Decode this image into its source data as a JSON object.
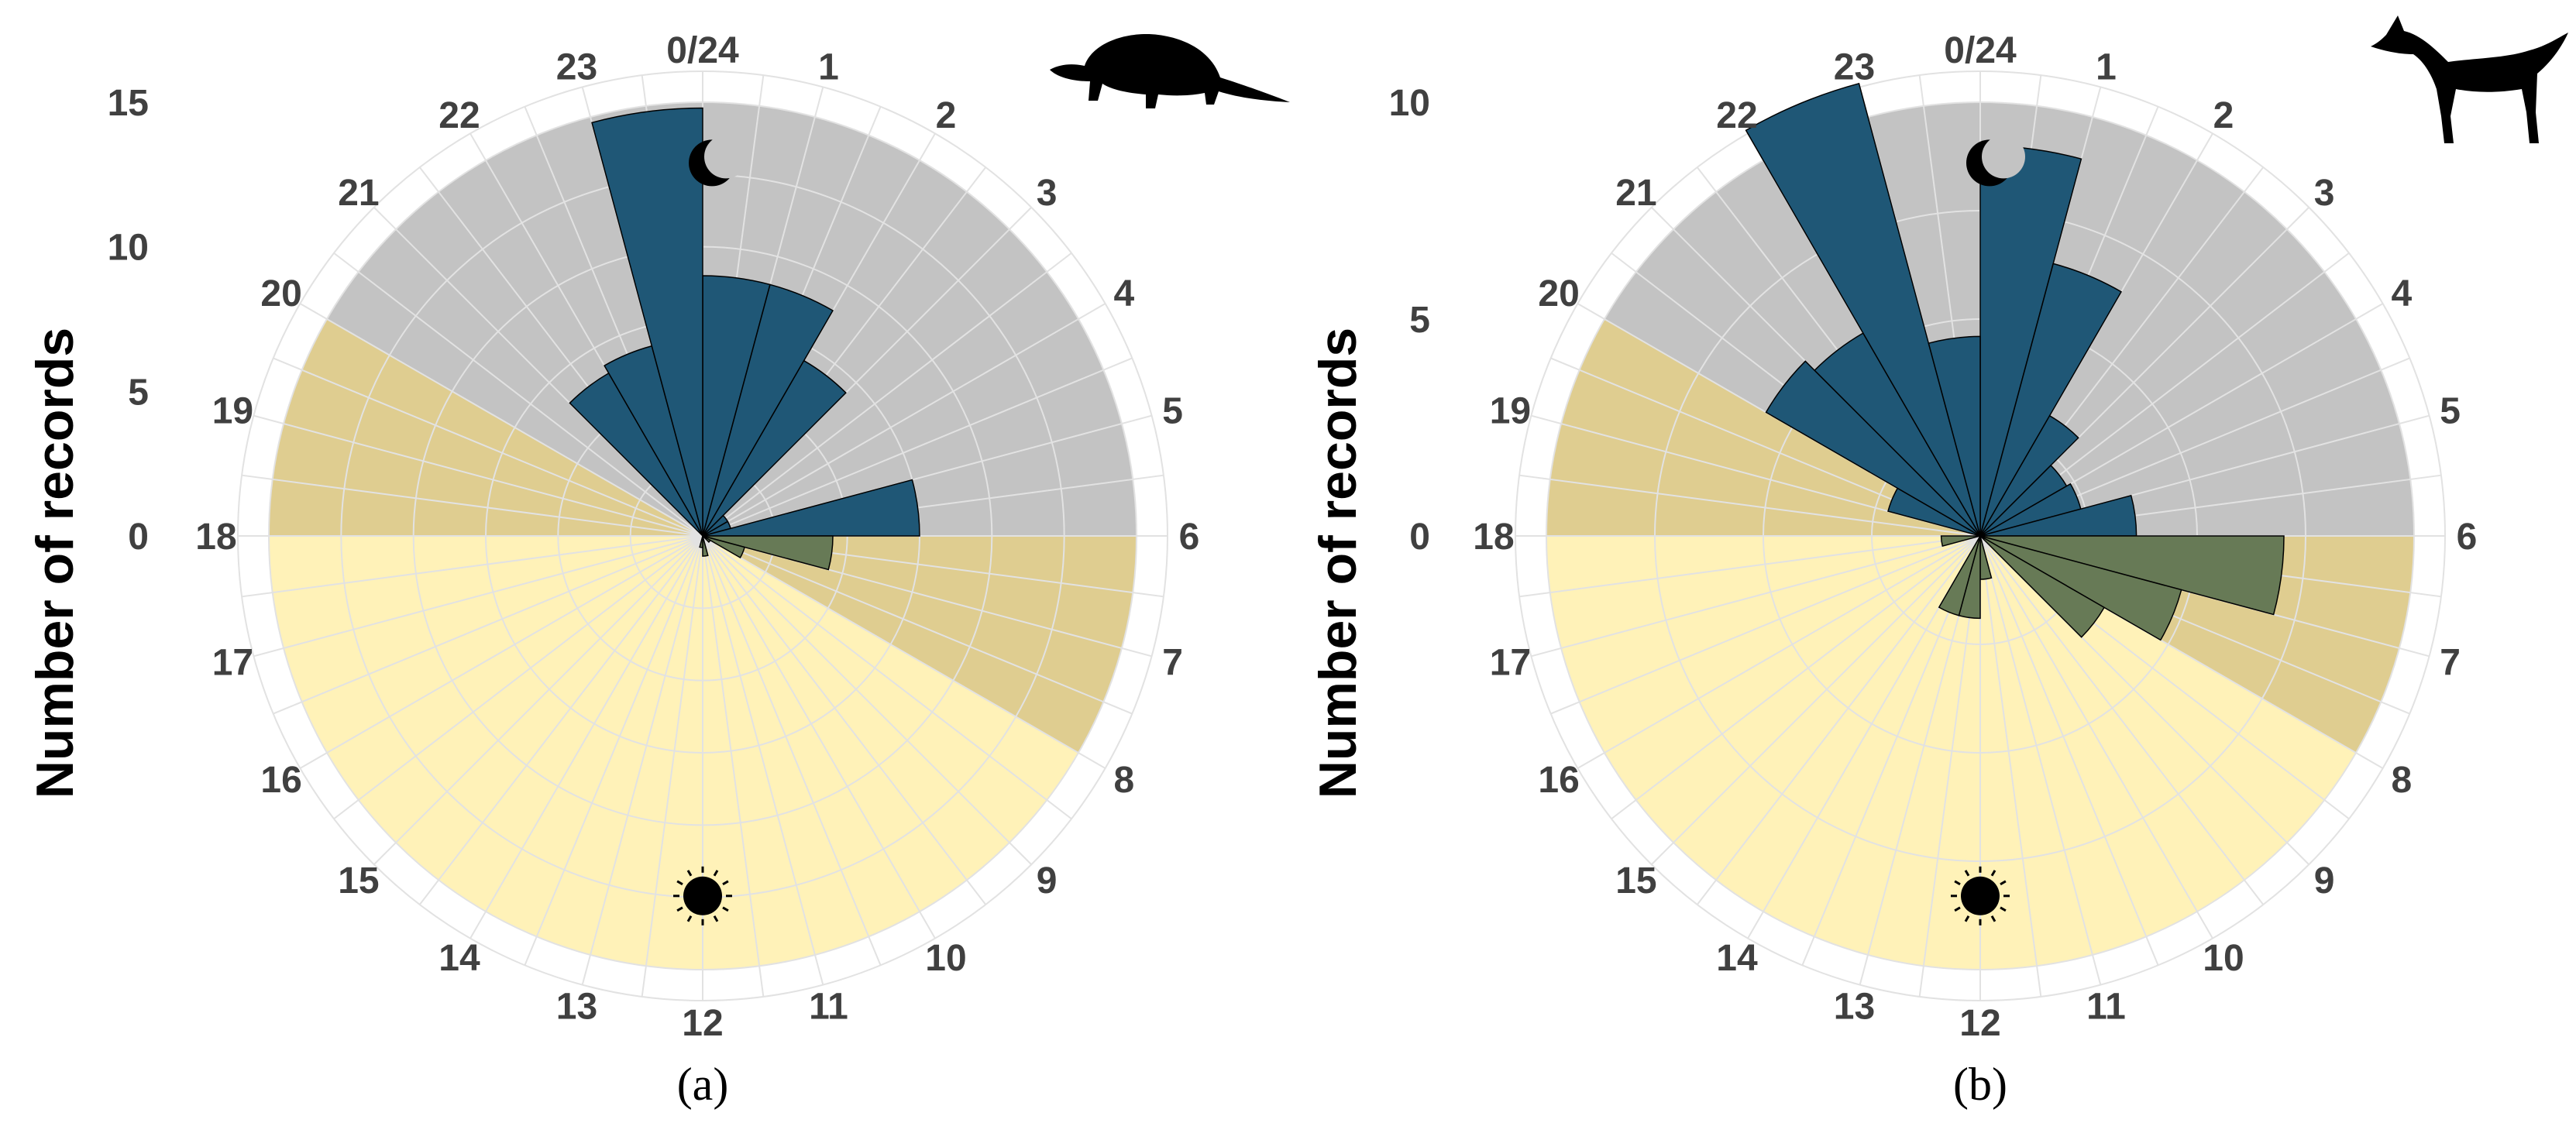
{
  "chart_data": [
    {
      "type": "bar",
      "projection": "polar",
      "panel_label": "(a)",
      "animal_icon": "armadillo-icon",
      "ylabel": "Number of records",
      "yticks": [
        0,
        5,
        10,
        15
      ],
      "ylim": [
        0,
        15
      ],
      "hour_labels": [
        "0/24",
        "1",
        "2",
        "3",
        "4",
        "5",
        "6",
        "7",
        "8",
        "9",
        "10",
        "11",
        "12",
        "13",
        "14",
        "15",
        "16",
        "17",
        "18",
        "19",
        "20",
        "21",
        "22",
        "23"
      ],
      "background": {
        "night_hours": [
          20,
          6
        ],
        "twilight_hours": [
          [
            6,
            8
          ],
          [
            18,
            20
          ]
        ],
        "day_hours": [
          8,
          18
        ],
        "night_icon": "moon-icon",
        "day_icon": "sun-icon"
      },
      "colors": {
        "night": "#c3c3c3",
        "twilight": "#dfcd90",
        "day": "#fff2b8",
        "bar_night": "#1f5776",
        "bar_day": "#677a56"
      },
      "series": [
        {
          "values": [
            9,
            9,
            7,
            1,
            1,
            7.5,
            4.5,
            1.5,
            0.3,
            0,
            0,
            0.7,
            0.4,
            0,
            0,
            0,
            0,
            0,
            0,
            0,
            0,
            6.5,
            6.8,
            14.8
          ]
        }
      ]
    },
    {
      "type": "bar",
      "projection": "polar",
      "panel_label": "(b)",
      "animal_icon": "fox-icon",
      "ylabel": "Number of records",
      "yticks": [
        0,
        5,
        10
      ],
      "ylim": [
        0,
        10
      ],
      "hour_labels": [
        "0/24",
        "1",
        "2",
        "3",
        "4",
        "5",
        "6",
        "7",
        "8",
        "9",
        "10",
        "11",
        "12",
        "13",
        "14",
        "15",
        "16",
        "17",
        "18",
        "19",
        "20",
        "21",
        "22",
        "23"
      ],
      "background": {
        "night_hours": [
          20,
          6
        ],
        "twilight_hours": [
          [
            6,
            8
          ],
          [
            18,
            20
          ]
        ],
        "day_hours": [
          8,
          18
        ],
        "night_icon": "moon-icon",
        "day_icon": "sun-icon"
      },
      "colors": {
        "night": "#c3c3c3",
        "twilight": "#dfcd90",
        "day": "#fff2b8",
        "bar_night": "#1f5776",
        "bar_day": "#677a56"
      },
      "series": [
        {
          "values": [
            9,
            6.5,
            3.2,
            2.3,
            2.4,
            3.6,
            7,
            4.8,
            3.3,
            0,
            0,
            1,
            1.9,
            1.9,
            0,
            0,
            0,
            0.9,
            0,
            2.2,
            5.7,
            5.4,
            10.8,
            4.6
          ]
        }
      ]
    }
  ]
}
